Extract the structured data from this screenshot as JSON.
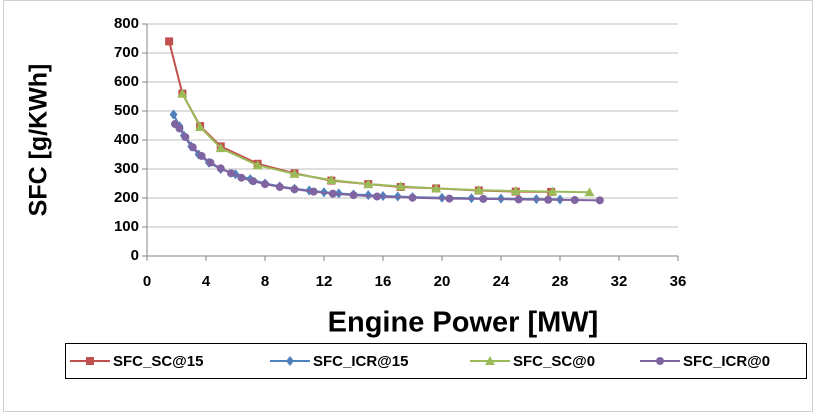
{
  "chart_data": {
    "type": "line",
    "xlabel": "Engine Power [MW]",
    "ylabel": "SFC [g/KWh]",
    "xlim": [
      0,
      36
    ],
    "xticks": [
      0,
      4,
      8,
      12,
      16,
      20,
      24,
      28,
      32,
      36
    ],
    "ylim": [
      0,
      800
    ],
    "yticks": [
      0,
      100,
      200,
      300,
      400,
      500,
      600,
      700,
      800
    ],
    "grid": true,
    "legend": "bottom",
    "series": [
      {
        "name": "SFC_SC@15",
        "color": "#c0504d",
        "marker": "square",
        "x": [
          1.5,
          2.4,
          3.6,
          5,
          7.5,
          10,
          12.5,
          15,
          17.2,
          19.6,
          22.5,
          25,
          27.4
        ],
        "values": [
          740,
          560,
          448,
          378,
          318,
          285,
          260,
          248,
          238,
          233,
          226,
          222,
          221
        ]
      },
      {
        "name": "SFC_ICR@15",
        "color": "#4f81bd",
        "marker": "diamond",
        "x": [
          1.8,
          2.2,
          2.5,
          3,
          3.5,
          4.2,
          5,
          6,
          7,
          8,
          9,
          10,
          11,
          12,
          13,
          14,
          15,
          16,
          17,
          18,
          20,
          22,
          24,
          26.4,
          28
        ],
        "values": [
          488,
          448,
          415,
          378,
          350,
          322,
          300,
          282,
          265,
          250,
          240,
          232,
          226,
          220,
          216,
          212,
          210,
          207,
          205,
          203,
          201,
          199,
          198,
          196,
          195
        ]
      },
      {
        "name": "SFC_SC@0",
        "color": "#9bbb59",
        "marker": "triangle",
        "x": [
          2.4,
          3.6,
          5,
          7.5,
          10,
          12.5,
          15,
          17.2,
          19.6,
          22.5,
          25,
          27.5,
          30
        ],
        "values": [
          560,
          445,
          372,
          313,
          283,
          262,
          248,
          240,
          233,
          227,
          224,
          222,
          220
        ]
      },
      {
        "name": "SFC_ICR@0",
        "color": "#8064a2",
        "marker": "circle",
        "x": [
          1.9,
          2.2,
          2.6,
          3.1,
          3.7,
          4.3,
          5,
          5.7,
          6.4,
          7.2,
          8,
          9,
          10,
          11.3,
          12.6,
          14,
          15.6,
          18,
          20.5,
          22.8,
          25.2,
          27.2,
          29,
          30.7
        ],
        "values": [
          455,
          440,
          410,
          375,
          345,
          322,
          302,
          285,
          270,
          258,
          248,
          238,
          230,
          222,
          215,
          210,
          205,
          201,
          198,
          197,
          195,
          194,
          193,
          192
        ]
      }
    ]
  }
}
